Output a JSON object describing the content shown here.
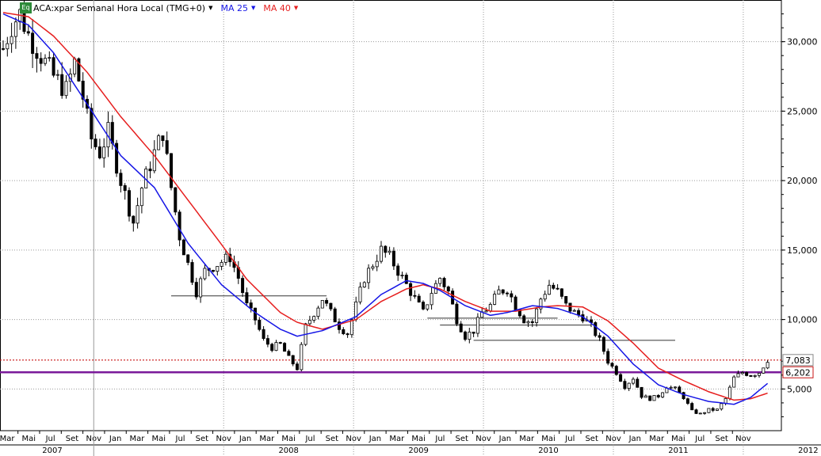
{
  "header": {
    "badge": "Eq",
    "instrument": "ACA:xpar Semanal Hora Local (TMG+0)",
    "ma1_label": "MA 25",
    "ma2_label": "MA 40"
  },
  "colors": {
    "ma25": "#1515e6",
    "ma40": "#e61e1e",
    "support": "#7a1a9a",
    "last_price_line": "#c81414",
    "candle": "#000000",
    "grid": "#9a9a9a"
  },
  "chart_data": {
    "type": "candlestick",
    "title": "ACA:xpar Semanal Hora Local (TMG+0)",
    "ylim": [
      2000,
      33000
    ],
    "y_ticks": [
      {
        "value": 5000,
        "label": "5,000"
      },
      {
        "value": 10000,
        "label": "10,000"
      },
      {
        "value": 15000,
        "label": "15,000"
      },
      {
        "value": 20000,
        "label": "20,000"
      },
      {
        "value": 25000,
        "label": "25,000"
      },
      {
        "value": 30000,
        "label": "30,000"
      }
    ],
    "months": [
      "Mar",
      "Mai",
      "Jul",
      "Set",
      "Nov",
      "Jan",
      "Mar",
      "Mai",
      "Jul",
      "Set",
      "Nov",
      "Jan",
      "Mar",
      "Mai",
      "Jul",
      "Set",
      "Nov",
      "Jan",
      "Mar",
      "Mai",
      "Jul",
      "Set",
      "Nov",
      "Jan",
      "Mar",
      "Mai",
      "Jul",
      "Set",
      "Nov",
      "Jan",
      "Mar",
      "Mai",
      "Jul",
      "Set",
      "Nov"
    ],
    "years": [
      "2007",
      "2008",
      "2009",
      "2010",
      "2011",
      "2012"
    ],
    "price_levels": [
      {
        "name": "last",
        "value": 7083,
        "label": "7,083"
      },
      {
        "name": "support",
        "value": 6202,
        "label": "6,202"
      }
    ],
    "price_anchors": [
      [
        0,
        29500
      ],
      [
        2,
        31200
      ],
      [
        4,
        32000
      ],
      [
        6,
        30500
      ],
      [
        9,
        29000
      ],
      [
        12,
        27500
      ],
      [
        15,
        26500
      ],
      [
        17,
        28500
      ],
      [
        19,
        26000
      ],
      [
        21,
        23000
      ],
      [
        23,
        22000
      ],
      [
        25,
        23500
      ],
      [
        28,
        20000
      ],
      [
        31,
        17000
      ],
      [
        33,
        19500
      ],
      [
        36,
        22000
      ],
      [
        38,
        23500
      ],
      [
        40,
        19500
      ],
      [
        42,
        16000
      ],
      [
        44,
        14000
      ],
      [
        46,
        12000
      ],
      [
        48,
        13500
      ],
      [
        51,
        14000
      ],
      [
        54,
        14500
      ],
      [
        56,
        13000
      ],
      [
        58,
        11000
      ],
      [
        60,
        10000
      ],
      [
        62,
        8500
      ],
      [
        64,
        8000
      ],
      [
        66,
        8200
      ],
      [
        68,
        7200
      ],
      [
        70,
        6500
      ],
      [
        72,
        9500
      ],
      [
        74,
        10500
      ],
      [
        76,
        11500
      ],
      [
        78,
        10500
      ],
      [
        80,
        9500
      ],
      [
        82,
        9000
      ],
      [
        84,
        11000
      ],
      [
        86,
        13000
      ],
      [
        88,
        14000
      ],
      [
        90,
        15000
      ],
      [
        92,
        14500
      ],
      [
        94,
        13500
      ],
      [
        96,
        12500
      ],
      [
        98,
        11500
      ],
      [
        100,
        10500
      ],
      [
        102,
        12000
      ],
      [
        104,
        13000
      ],
      [
        106,
        12000
      ],
      [
        108,
        10000
      ],
      [
        110,
        8800
      ],
      [
        112,
        9200
      ],
      [
        114,
        10500
      ],
      [
        116,
        11000
      ],
      [
        118,
        12000
      ],
      [
        120,
        12200
      ],
      [
        122,
        11000
      ],
      [
        124,
        10000
      ],
      [
        126,
        9800
      ],
      [
        128,
        11500
      ],
      [
        130,
        12500
      ],
      [
        132,
        12000
      ],
      [
        134,
        11000
      ],
      [
        136,
        10500
      ],
      [
        138,
        10200
      ],
      [
        140,
        9500
      ],
      [
        142,
        8500
      ],
      [
        144,
        7000
      ],
      [
        146,
        6200
      ],
      [
        148,
        5200
      ],
      [
        150,
        5800
      ],
      [
        152,
        4500
      ],
      [
        154,
        4300
      ],
      [
        156,
        4500
      ],
      [
        158,
        5200
      ],
      [
        160,
        5000
      ],
      [
        162,
        4400
      ],
      [
        164,
        3400
      ],
      [
        166,
        3200
      ],
      [
        168,
        3500
      ],
      [
        170,
        3500
      ],
      [
        172,
        4300
      ],
      [
        174,
        5800
      ],
      [
        176,
        6200
      ],
      [
        178,
        6000
      ],
      [
        180,
        6200
      ],
      [
        182,
        7100
      ]
    ],
    "ma25_anchors": [
      [
        0,
        32000
      ],
      [
        6,
        31200
      ],
      [
        12,
        29200
      ],
      [
        20,
        25500
      ],
      [
        28,
        21800
      ],
      [
        36,
        19500
      ],
      [
        44,
        15500
      ],
      [
        52,
        12500
      ],
      [
        60,
        10500
      ],
      [
        66,
        9300
      ],
      [
        70,
        8800
      ],
      [
        76,
        9200
      ],
      [
        84,
        10200
      ],
      [
        90,
        11800
      ],
      [
        96,
        12800
      ],
      [
        100,
        12600
      ],
      [
        104,
        12100
      ],
      [
        110,
        11000
      ],
      [
        116,
        10300
      ],
      [
        120,
        10500
      ],
      [
        126,
        11000
      ],
      [
        132,
        10800
      ],
      [
        138,
        10200
      ],
      [
        144,
        8800
      ],
      [
        150,
        6800
      ],
      [
        156,
        5300
      ],
      [
        162,
        4600
      ],
      [
        168,
        4100
      ],
      [
        174,
        3900
      ],
      [
        178,
        4400
      ],
      [
        182,
        5400
      ]
    ],
    "ma40_anchors": [
      [
        0,
        32100
      ],
      [
        6,
        31800
      ],
      [
        12,
        30400
      ],
      [
        20,
        27800
      ],
      [
        28,
        24600
      ],
      [
        36,
        21800
      ],
      [
        44,
        18600
      ],
      [
        52,
        15400
      ],
      [
        58,
        12900
      ],
      [
        66,
        10500
      ],
      [
        70,
        9800
      ],
      [
        76,
        9300
      ],
      [
        84,
        10000
      ],
      [
        90,
        11300
      ],
      [
        96,
        12200
      ],
      [
        100,
        12500
      ],
      [
        104,
        12200
      ],
      [
        110,
        11300
      ],
      [
        116,
        10600
      ],
      [
        122,
        10600
      ],
      [
        128,
        10900
      ],
      [
        132,
        11000
      ],
      [
        138,
        10900
      ],
      [
        144,
        9900
      ],
      [
        150,
        8300
      ],
      [
        156,
        6500
      ],
      [
        162,
        5600
      ],
      [
        168,
        4800
      ],
      [
        174,
        4200
      ],
      [
        178,
        4300
      ],
      [
        182,
        4700
      ]
    ],
    "horizontal_segments": [
      {
        "from_week": 40,
        "to_week": 77,
        "value": 11700
      },
      {
        "from_week": 101,
        "to_week": 132,
        "value": 10100
      },
      {
        "from_week": 104,
        "to_week": 140,
        "value": 9600
      },
      {
        "from_week": 112,
        "to_week": 160,
        "value": 8500
      }
    ]
  }
}
